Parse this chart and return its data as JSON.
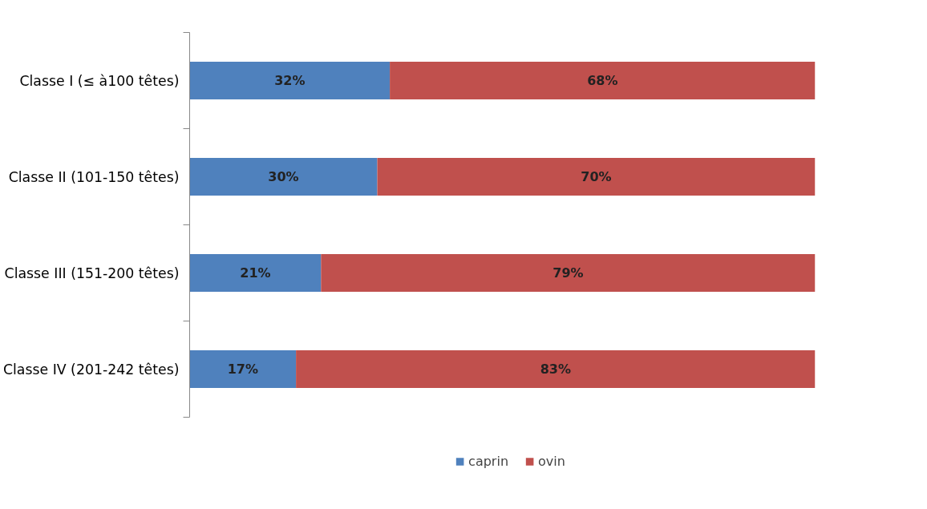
{
  "chart_data": {
    "type": "bar",
    "orientation": "horizontal",
    "stacked": true,
    "categories": [
      "Classe I (≤ à100 têtes)",
      "Classe II (101-150 têtes)",
      "Classe III (151-200 têtes)",
      "Classe IV (201-242 têtes)"
    ],
    "series": [
      {
        "name": "caprin",
        "color": "#4f81bd",
        "values": [
          32,
          30,
          21,
          17
        ],
        "value_labels": [
          "32%",
          "30%",
          "21%",
          "17%"
        ]
      },
      {
        "name": "ovin",
        "color": "#c0504d",
        "values": [
          68,
          70,
          79,
          83
        ],
        "value_labels": [
          "68%",
          "70%",
          "79%",
          "83%"
        ]
      }
    ],
    "xlim": [
      0,
      100
    ],
    "tick_labels": "y",
    "grid": false,
    "legend": "bottom"
  }
}
